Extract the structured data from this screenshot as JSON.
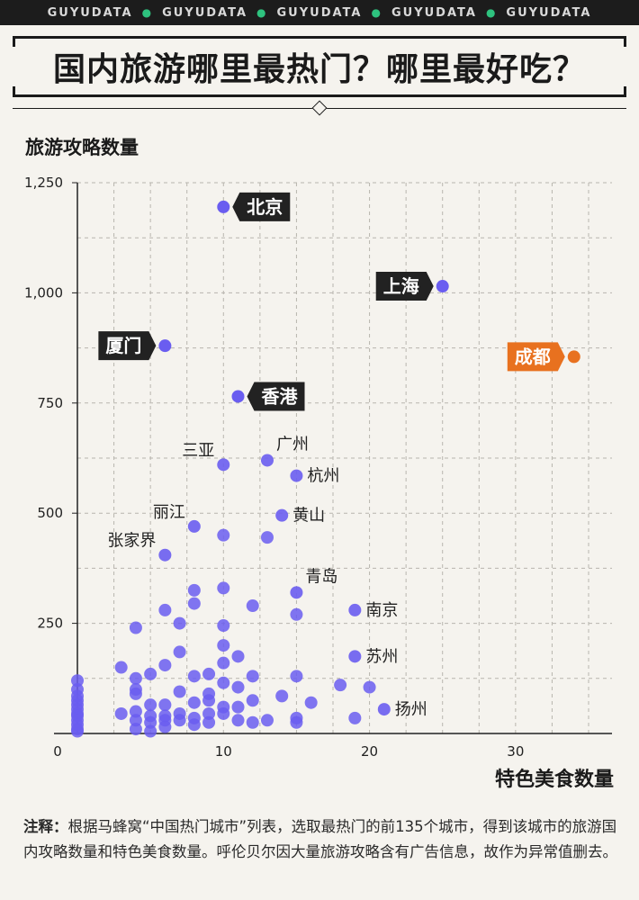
{
  "header": {
    "brand": "GUYUDATA",
    "brand_repeats": 5,
    "title": "国内旅游哪里最热门？哪里最好吃？"
  },
  "chart_data": {
    "type": "scatter",
    "title": "国内旅游哪里最热门？哪里最好吃？",
    "ylabel": "旅游攻略数量",
    "xlabel": "特色美食数量",
    "xlim": [
      0,
      35
    ],
    "ylim": [
      0,
      1250
    ],
    "xticks": [
      0,
      10,
      20,
      30
    ],
    "yticks": [
      250,
      500,
      750,
      1000,
      1250
    ],
    "ytick_labels": [
      "250",
      "500",
      "750",
      "1,000",
      "1,250"
    ],
    "xtick_labels": [
      "0",
      "10",
      "20",
      "30"
    ],
    "grid": true,
    "colors": {
      "point": "#6a5df0",
      "highlight": "#e8711f",
      "tag": "#222222",
      "tag_text": "#ffffff"
    },
    "highlighted": [
      {
        "name": "北京",
        "x": 10,
        "y": 1195,
        "side": "right",
        "color": "dark"
      },
      {
        "name": "上海",
        "x": 25,
        "y": 1015,
        "side": "left",
        "color": "dark"
      },
      {
        "name": "成都",
        "x": 34,
        "y": 855,
        "side": "left",
        "color": "orange"
      },
      {
        "name": "厦门",
        "x": 6,
        "y": 880,
        "side": "left",
        "color": "dark"
      },
      {
        "name": "香港",
        "x": 11,
        "y": 765,
        "side": "right",
        "color": "dark"
      }
    ],
    "labeled": [
      {
        "name": "三亚",
        "x": 10,
        "y": 610,
        "side": "upper-left"
      },
      {
        "name": "广州",
        "x": 13,
        "y": 620,
        "side": "upper-right"
      },
      {
        "name": "杭州",
        "x": 15,
        "y": 585,
        "side": "right"
      },
      {
        "name": "丽江",
        "x": 8,
        "y": 470,
        "side": "upper-left"
      },
      {
        "name": "黄山",
        "x": 14,
        "y": 495,
        "side": "right"
      },
      {
        "name": "张家界",
        "x": 6,
        "y": 405,
        "side": "upper-left"
      },
      {
        "name": "青岛",
        "x": 15,
        "y": 320,
        "side": "upper-right"
      },
      {
        "name": "南京",
        "x": 19,
        "y": 280,
        "side": "right"
      },
      {
        "name": "苏州",
        "x": 19,
        "y": 175,
        "side": "right"
      },
      {
        "name": "扬州",
        "x": 21,
        "y": 55,
        "side": "right"
      }
    ],
    "points": [
      [
        10,
        450
      ],
      [
        13,
        445
      ],
      [
        15,
        270
      ],
      [
        12,
        290
      ],
      [
        10,
        330
      ],
      [
        8,
        325
      ],
      [
        8,
        295
      ],
      [
        6,
        280
      ],
      [
        7,
        250
      ],
      [
        4,
        240
      ],
      [
        10,
        245
      ],
      [
        11,
        175
      ],
      [
        7,
        185
      ],
      [
        10,
        200
      ],
      [
        6,
        155
      ],
      [
        10,
        160
      ],
      [
        12,
        130
      ],
      [
        15,
        130
      ],
      [
        18,
        110
      ],
      [
        20,
        105
      ],
      [
        9,
        135
      ],
      [
        8,
        130
      ],
      [
        5,
        135
      ],
      [
        3,
        150
      ],
      [
        4,
        125
      ],
      [
        4,
        100
      ],
      [
        4,
        90
      ],
      [
        7,
        95
      ],
      [
        9,
        90
      ],
      [
        10,
        115
      ],
      [
        11,
        105
      ],
      [
        14,
        85
      ],
      [
        16,
        70
      ],
      [
        12,
        75
      ],
      [
        6,
        65
      ],
      [
        5,
        65
      ],
      [
        8,
        70
      ],
      [
        9,
        75
      ],
      [
        10,
        60
      ],
      [
        11,
        60
      ],
      [
        9,
        45
      ],
      [
        7,
        45
      ],
      [
        6,
        40
      ],
      [
        5,
        40
      ],
      [
        3,
        45
      ],
      [
        4,
        50
      ],
      [
        4,
        30
      ],
      [
        5,
        25
      ],
      [
        6,
        30
      ],
      [
        7,
        30
      ],
      [
        8,
        35
      ],
      [
        9,
        25
      ],
      [
        10,
        45
      ],
      [
        11,
        30
      ],
      [
        13,
        30
      ],
      [
        15,
        25
      ],
      [
        15,
        35
      ],
      [
        19,
        35
      ],
      [
        12,
        25
      ],
      [
        6,
        15
      ],
      [
        8,
        20
      ],
      [
        4,
        10
      ],
      [
        5,
        5
      ],
      [
        0,
        120
      ],
      [
        0,
        100
      ],
      [
        0,
        85
      ],
      [
        0,
        75
      ],
      [
        0,
        65
      ],
      [
        0,
        55
      ],
      [
        0,
        45
      ],
      [
        0,
        40
      ],
      [
        0,
        30
      ],
      [
        0,
        20
      ],
      [
        0,
        10
      ],
      [
        0,
        5
      ]
    ]
  },
  "note": {
    "lead": "注释：",
    "text": "根据马蜂窝“中国热门城市”列表，选取最热门的前135个城市，得到该城市的旅游国内攻略数量和特色美食数量。呼伦贝尔因大量旅游攻略含有广告信息，故作为异常值删去。"
  }
}
